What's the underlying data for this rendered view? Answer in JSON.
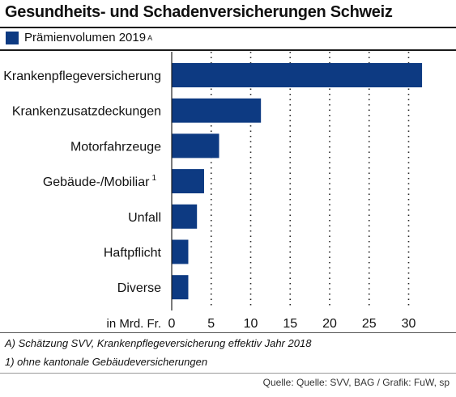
{
  "title": "Gesundheits- und Schadenversicherungen Schweiz",
  "legend": {
    "label": "Prämienvolumen 2019",
    "marker": "A",
    "color": "#0d3a82"
  },
  "footnotes": [
    "A) Schätzung SVV, Krankenpflegeversicherung effektiv Jahr 2018",
    "1)  ohne kantonale Gebäudeversicherungen"
  ],
  "source": "Quelle: Quelle: SVV, BAG / Grafik: FuW, sp",
  "chart_data": {
    "type": "bar",
    "orientation": "horizontal",
    "categories": [
      "Krankenpflegeversicherung",
      "Krankenzusatzdeckungen",
      "Motorfahrzeuge",
      "Gebäude-/Mobiliar",
      "Unfall",
      "Haftpflicht",
      "Diverse"
    ],
    "category_superscripts": [
      "",
      "",
      "",
      "1",
      "",
      "",
      ""
    ],
    "series": [
      {
        "values": [
          31.7,
          11.3,
          6.0,
          4.1,
          3.2,
          2.1,
          2.1
        ]
      }
    ],
    "xlim": [
      0,
      32
    ],
    "xticks": [
      0,
      5,
      10,
      15,
      20,
      25,
      30
    ],
    "xlabel": "in Mrd. Fr.",
    "grid": "vertical dotted",
    "bar_color": "#0d3a82"
  }
}
